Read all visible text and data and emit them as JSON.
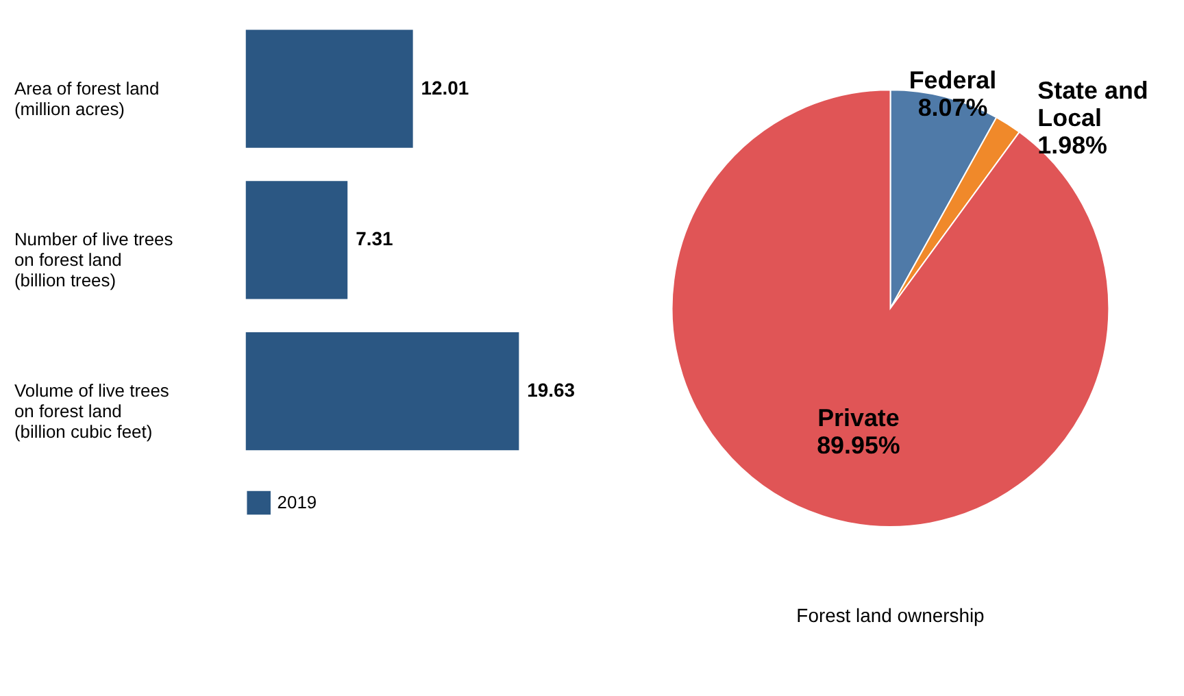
{
  "chart_data": [
    {
      "type": "bar",
      "orientation": "horizontal",
      "categories": [
        "Area of forest land\n(million acres)",
        "Number of live trees\non forest land\n(billion trees)",
        "Volume of live trees\non forest land\n(billion cubic feet)"
      ],
      "series": [
        {
          "name": "2019",
          "color": "#2b5783",
          "values": [
            12.01,
            7.31,
            19.63
          ]
        }
      ],
      "data_labels": true,
      "legend": "bottom"
    },
    {
      "type": "pie",
      "title": "Forest land ownership",
      "categories": [
        "Federal",
        "State and\nLocal",
        "Private"
      ],
      "values": [
        8.07,
        1.98,
        89.95
      ],
      "value_labels": [
        "8.07%",
        "1.98%",
        "89.95%"
      ],
      "colors": [
        "#4f7aa8",
        "#f0892a",
        "#e05556"
      ],
      "legend": false
    }
  ]
}
